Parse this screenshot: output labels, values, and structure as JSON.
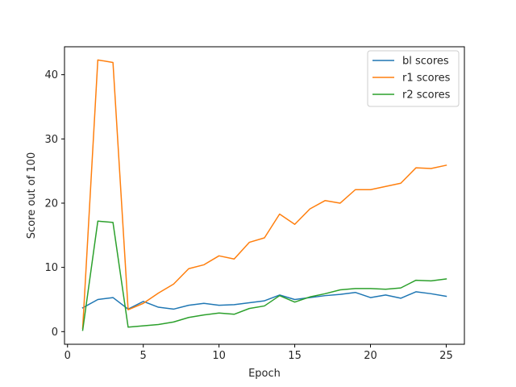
{
  "chart_data": {
    "type": "line",
    "title": "",
    "xlabel": "Epoch",
    "ylabel": "Score out of 100",
    "xlim": [
      -0.2,
      26.2
    ],
    "ylim": [
      -1.97,
      44.35
    ],
    "xticks": [
      0,
      5,
      10,
      15,
      20,
      25
    ],
    "yticks": [
      0,
      10,
      20,
      30,
      40
    ],
    "grid": false,
    "legend_position": "top-right",
    "x": [
      1,
      2,
      3,
      4,
      5,
      6,
      7,
      8,
      9,
      10,
      11,
      12,
      13,
      14,
      15,
      16,
      17,
      18,
      19,
      20,
      21,
      22,
      23,
      24,
      25
    ],
    "series": [
      {
        "name": "bl scores",
        "color": "#1f77b4",
        "values": [
          3.7,
          5.0,
          5.3,
          3.5,
          4.7,
          3.8,
          3.5,
          4.1,
          4.4,
          4.1,
          4.2,
          4.5,
          4.8,
          5.7,
          5.0,
          5.3,
          5.6,
          5.8,
          6.1,
          5.3,
          5.7,
          5.2,
          6.2,
          5.9,
          5.5
        ]
      },
      {
        "name": "r1 scores",
        "color": "#ff7f0e",
        "values": [
          0.5,
          42.3,
          41.9,
          3.4,
          4.4,
          6.0,
          7.4,
          9.8,
          10.4,
          11.8,
          11.3,
          13.9,
          14.6,
          18.3,
          16.7,
          19.1,
          20.4,
          20.0,
          22.1,
          22.1,
          22.6,
          23.1,
          25.5,
          25.4,
          25.9
        ]
      },
      {
        "name": "r2 scores",
        "color": "#2ca02c",
        "values": [
          0.2,
          17.2,
          17.0,
          0.7,
          0.9,
          1.1,
          1.5,
          2.2,
          2.6,
          2.9,
          2.7,
          3.6,
          4.0,
          5.6,
          4.6,
          5.4,
          5.9,
          6.5,
          6.7,
          6.7,
          6.6,
          6.8,
          8.0,
          7.9,
          8.2
        ]
      }
    ]
  }
}
